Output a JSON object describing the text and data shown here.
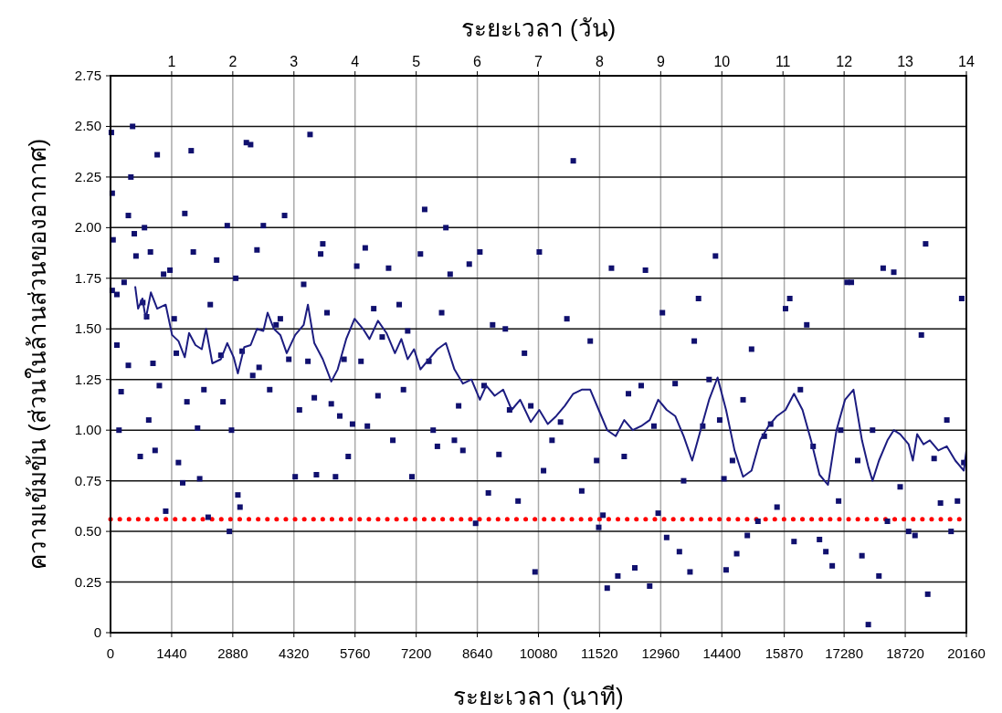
{
  "chart_data": {
    "type": "scatter",
    "xlabel": "ระยะเวลา (นาที)",
    "x2label": "ระยะเวลา (วัน)",
    "ylabel": "ความเข้มข้น (ส่วนในล้านส่วนของอากาศ)",
    "xlim": [
      0,
      20160
    ],
    "xticks": [
      0,
      1440,
      2880,
      4320,
      5760,
      7200,
      8640,
      10080,
      11520,
      12960,
      14400,
      15870,
      17280,
      18720,
      20160
    ],
    "x2lim": [
      0,
      14
    ],
    "x2ticks": [
      1,
      2,
      3,
      4,
      5,
      6,
      7,
      8,
      9,
      10,
      11,
      12,
      13,
      14
    ],
    "ylim": [
      0,
      2.75
    ],
    "yticks": [
      0,
      0.25,
      {
        "value": 0.5,
        "label": "0.50"
      },
      0.75,
      {
        "value": 1,
        "label": "1.00"
      },
      1.25,
      {
        "value": 1.5,
        "label": "1.50"
      },
      1.75,
      {
        "value": 2,
        "label": "2.00"
      },
      2.25,
      {
        "value": 2.5,
        "label": "2.50"
      },
      2.75
    ],
    "grid": true,
    "ref_lines": [
      {
        "axis": "y",
        "value": 0.56,
        "color": "#ff0000",
        "line_style": "dotted"
      }
    ],
    "series": [
      {
        "marker": "square",
        "color": "#10106e",
        "x": [
          20,
          40,
          60,
          40,
          150,
          150,
          200,
          250,
          320,
          420,
          420,
          480,
          520,
          560,
          600,
          700,
          760,
          800,
          850,
          900,
          940,
          1000,
          1050,
          1100,
          1150,
          1250,
          1300,
          1400,
          1500,
          1550,
          1600,
          1700,
          1750,
          1800,
          1900,
          1950,
          2050,
          2100,
          2200,
          2300,
          2350,
          2500,
          2600,
          2650,
          2750,
          2800,
          2850,
          2950,
          3000,
          3050,
          3100,
          3200,
          3300,
          3350,
          3450,
          3500,
          3600,
          3750,
          3900,
          4000,
          4100,
          4200,
          4350,
          4450,
          4550,
          4650,
          4700,
          4800,
          4850,
          4950,
          5000,
          5100,
          5200,
          5300,
          5400,
          5500,
          5600,
          5700,
          5800,
          5900,
          6000,
          6050,
          6200,
          6300,
          6400,
          6550,
          6650,
          6800,
          6900,
          7000,
          7100,
          7300,
          7400,
          7500,
          7600,
          7700,
          7800,
          7900,
          8000,
          8100,
          8200,
          8300,
          8450,
          8600,
          8700,
          8800,
          8900,
          9000,
          9150,
          9300,
          9400,
          9600,
          9750,
          9900,
          10000,
          10100,
          10200,
          10400,
          10600,
          10750,
          10900,
          11100,
          11300,
          11450,
          11500,
          11600,
          11700,
          11800,
          11950,
          12100,
          12200,
          12350,
          12500,
          12600,
          12700,
          12800,
          12900,
          13000,
          13100,
          13300,
          13400,
          13500,
          13650,
          13750,
          13850,
          13950,
          14100,
          14250,
          14350,
          14450,
          14500,
          14650,
          14750,
          14900,
          15000,
          15100,
          15250,
          15400,
          15550,
          15700,
          15900,
          16000,
          16100,
          16250,
          16400,
          16550,
          16700,
          16850,
          17000,
          17150,
          17200,
          17350,
          17450,
          17600,
          17700,
          17850,
          17950,
          18100,
          18200,
          18300,
          18450,
          18600,
          18800,
          18950,
          19100,
          19200,
          19250,
          19400,
          19550,
          19700,
          19800,
          19950,
          20050,
          20100
        ],
        "values": [
          2.47,
          2.17,
          1.94,
          1.69,
          1.67,
          1.42,
          1.0,
          1.19,
          1.73,
          1.32,
          2.06,
          2.25,
          2.5,
          1.97,
          1.86,
          0.87,
          1.63,
          2.0,
          1.56,
          1.05,
          1.88,
          1.33,
          0.9,
          2.36,
          1.22,
          1.77,
          0.6,
          1.79,
          1.55,
          1.38,
          0.84,
          0.74,
          2.07,
          1.14,
          2.38,
          1.88,
          1.01,
          0.76,
          1.2,
          0.57,
          1.62,
          1.84,
          1.37,
          1.14,
          2.01,
          0.5,
          1.0,
          1.75,
          0.68,
          0.62,
          1.39,
          2.42,
          2.41,
          1.27,
          1.89,
          1.31,
          2.01,
          1.2,
          1.52,
          1.55,
          2.06,
          1.35,
          0.77,
          1.1,
          1.72,
          1.34,
          2.46,
          1.16,
          0.78,
          1.87,
          1.92,
          1.58,
          1.13,
          0.77,
          1.07,
          1.35,
          0.87,
          1.03,
          1.81,
          1.34,
          1.9,
          1.02,
          1.6,
          1.17,
          1.46,
          1.8,
          0.95,
          1.62,
          1.2,
          1.49,
          0.77,
          1.87,
          2.09,
          1.34,
          1.0,
          0.92,
          1.58,
          2.0,
          1.77,
          0.95,
          1.12,
          0.9,
          1.82,
          0.54,
          1.88,
          1.22,
          0.69,
          1.52,
          0.88,
          1.5,
          1.1,
          0.65,
          1.38,
          1.12,
          0.3,
          1.88,
          0.8,
          0.95,
          1.04,
          1.55,
          2.33,
          0.7,
          1.44,
          0.85,
          0.52,
          0.58,
          0.22,
          1.8,
          0.28,
          0.87,
          1.18,
          0.32,
          1.22,
          1.79,
          0.23,
          1.02,
          0.59,
          1.58,
          0.47,
          1.23,
          0.4,
          0.75,
          0.3,
          1.44,
          1.65,
          1.02,
          1.25,
          1.86,
          1.05,
          0.76,
          0.31,
          0.85,
          0.39,
          1.15,
          0.48,
          1.4,
          0.55,
          0.97,
          1.03,
          0.62,
          1.6,
          1.65,
          0.45,
          1.2,
          1.52,
          0.92,
          0.46,
          0.4,
          0.33,
          0.65,
          1.0,
          1.73,
          1.73,
          0.85,
          0.38,
          0.04,
          1.0,
          0.28,
          1.8,
          0.55,
          1.78,
          0.72,
          0.5,
          0.48,
          1.47,
          1.92,
          0.19,
          0.86,
          0.64,
          1.05,
          0.5,
          0.65,
          1.65,
          0.84
        ]
      },
      {
        "type": "line",
        "color": "#1c1c80",
        "x": [
          580,
          650,
          750,
          830,
          950,
          1100,
          1300,
          1450,
          1600,
          1750,
          1850,
          2000,
          2150,
          2250,
          2400,
          2600,
          2750,
          2900,
          3000,
          3150,
          3300,
          3450,
          3600,
          3700,
          3850,
          4000,
          4150,
          4350,
          4550,
          4650,
          4800,
          5000,
          5200,
          5350,
          5550,
          5750,
          5950,
          6100,
          6300,
          6500,
          6700,
          6850,
          7000,
          7150,
          7300,
          7500,
          7700,
          7900,
          8100,
          8300,
          8500,
          8700,
          8850,
          9050,
          9250,
          9450,
          9650,
          9900,
          10100,
          10300,
          10500,
          10700,
          10900,
          11100,
          11300,
          11500,
          11700,
          11900,
          12100,
          12300,
          12500,
          12700,
          12900,
          13100,
          13300,
          13500,
          13700,
          13900,
          14100,
          14300,
          14500,
          14700,
          14900,
          15100,
          15300,
          15500,
          15700,
          15900,
          16100,
          16300,
          16500,
          16700,
          16900,
          17100,
          17300,
          17500,
          17700,
          17850,
          17950,
          18100,
          18300,
          18450,
          18600,
          18800,
          18900,
          19000,
          19150,
          19300,
          19500,
          19700,
          19900,
          20100,
          20160
        ],
        "values": [
          1.71,
          1.6,
          1.65,
          1.55,
          1.68,
          1.6,
          1.62,
          1.47,
          1.44,
          1.36,
          1.48,
          1.42,
          1.4,
          1.5,
          1.33,
          1.35,
          1.43,
          1.36,
          1.28,
          1.41,
          1.42,
          1.5,
          1.49,
          1.58,
          1.5,
          1.47,
          1.38,
          1.47,
          1.52,
          1.62,
          1.43,
          1.35,
          1.24,
          1.3,
          1.45,
          1.55,
          1.5,
          1.45,
          1.54,
          1.48,
          1.38,
          1.45,
          1.35,
          1.4,
          1.3,
          1.35,
          1.4,
          1.43,
          1.3,
          1.23,
          1.25,
          1.15,
          1.22,
          1.17,
          1.2,
          1.1,
          1.15,
          1.04,
          1.1,
          1.03,
          1.07,
          1.12,
          1.18,
          1.2,
          1.2,
          1.1,
          1.0,
          0.97,
          1.05,
          1.0,
          1.02,
          1.05,
          1.15,
          1.1,
          1.07,
          0.97,
          0.85,
          1.0,
          1.15,
          1.26,
          1.1,
          0.9,
          0.77,
          0.8,
          0.95,
          1.02,
          1.07,
          1.1,
          1.18,
          1.1,
          0.95,
          0.78,
          0.73,
          1.0,
          1.15,
          1.2,
          0.95,
          0.82,
          0.75,
          0.85,
          0.95,
          1.0,
          0.98,
          0.93,
          0.85,
          0.98,
          0.93,
          0.95,
          0.9,
          0.92,
          0.85,
          0.8,
          0.9
        ]
      }
    ]
  }
}
